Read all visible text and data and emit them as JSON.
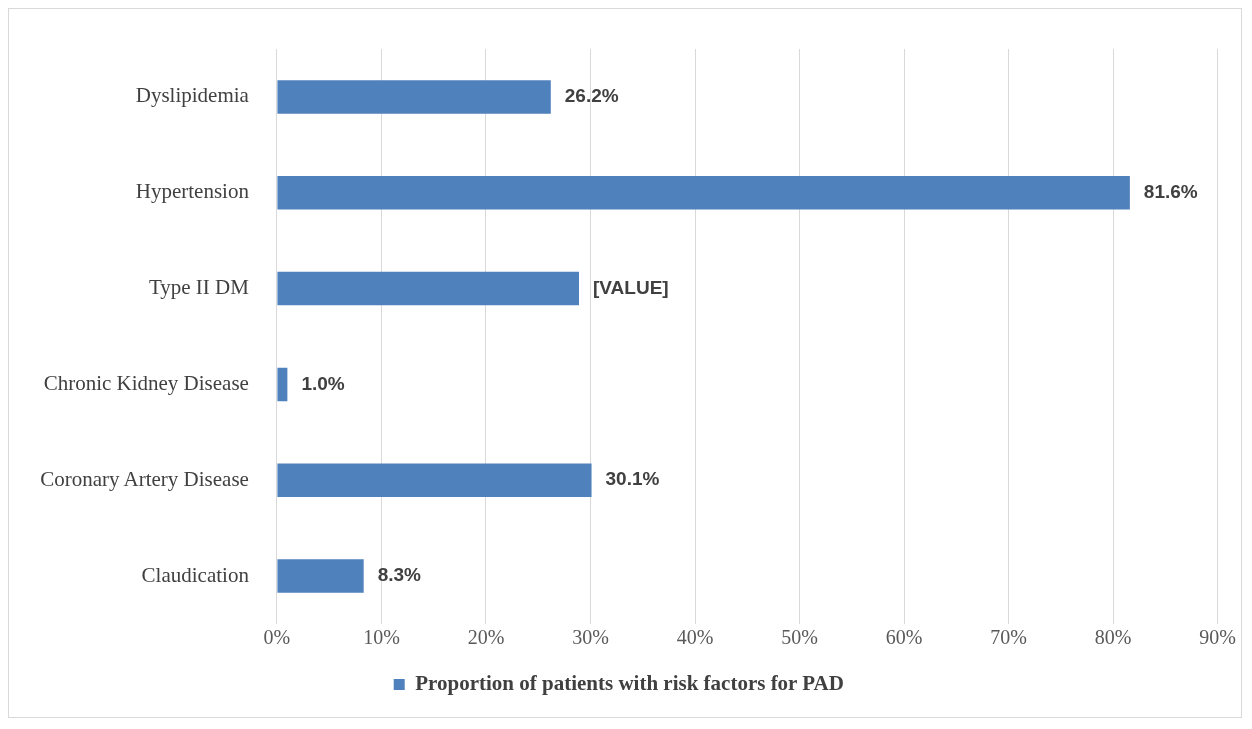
{
  "chart_data": {
    "type": "bar",
    "orientation": "horizontal",
    "categories": [
      "Dyslipidemia",
      "Hypertension",
      "Type II DM",
      "Chronic Kidney Disease",
      "Coronary Artery Disease",
      "Claudication"
    ],
    "series": [
      {
        "name": "Proportion of patients with risk factors for PAD",
        "color": "#4f81bd",
        "values": [
          26.2,
          81.6,
          28.9,
          1.0,
          30.1,
          8.3
        ],
        "value_labels": [
          "26.2%",
          "81.6%",
          "[VALUE]",
          "1.0%",
          "30.1%",
          "8.3%"
        ]
      }
    ],
    "xlim": [
      0,
      90
    ],
    "xticks": [
      {
        "value": 0,
        "label": "0%"
      },
      {
        "value": 10,
        "label": "10%"
      },
      {
        "value": 20,
        "label": "20%"
      },
      {
        "value": 30,
        "label": "30%"
      },
      {
        "value": 40,
        "label": "40%"
      },
      {
        "value": 50,
        "label": "50%"
      },
      {
        "value": 60,
        "label": "60%"
      },
      {
        "value": 70,
        "label": "70%"
      },
      {
        "value": 80,
        "label": "80%"
      },
      {
        "value": 90,
        "label": "90%"
      }
    ],
    "grid": "x",
    "legend": "bottom"
  }
}
